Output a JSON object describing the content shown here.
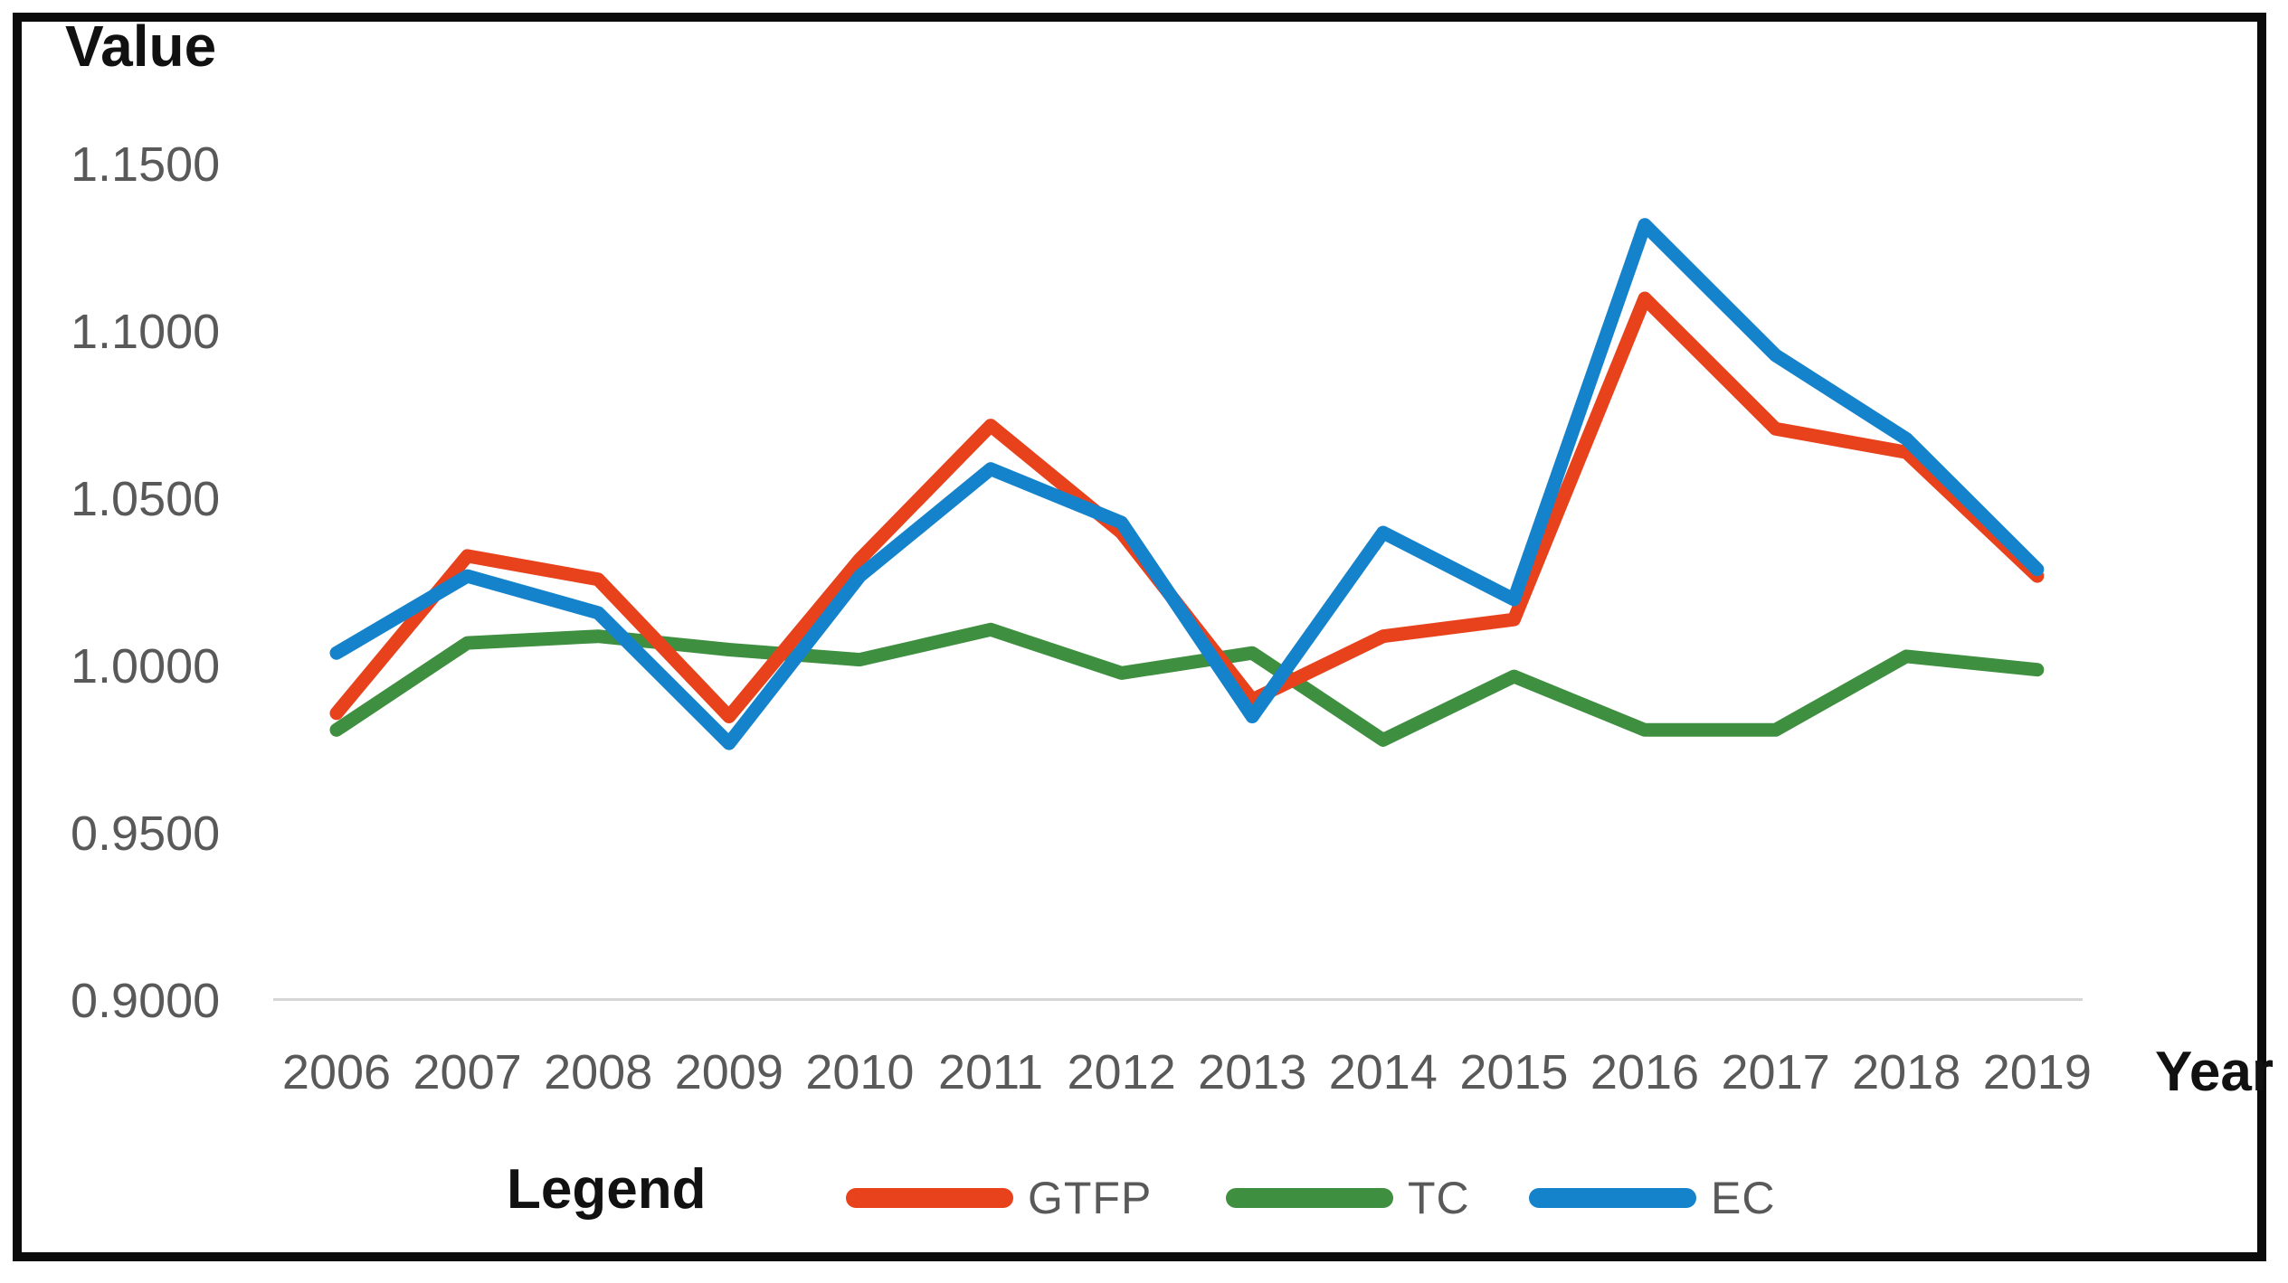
{
  "chart": {
    "y_axis_title": "Value",
    "x_axis_title": "Year",
    "legend_title": "Legend"
  },
  "chart_data": {
    "type": "line",
    "title": "",
    "ylabel": "Value",
    "xlabel": "Year",
    "ylim": [
      0.9,
      1.15
    ],
    "ytick_step": 0.05,
    "ytick_labels": [
      "1.1500",
      "1.1000",
      "1.0500",
      "1.0000",
      "0.9500",
      "0.9000"
    ],
    "grid": "single light baseline gridline at 0.9000",
    "legend_position": "bottom",
    "x": [
      "2006",
      "2007",
      "2008",
      "2009",
      "2010",
      "2011",
      "2012",
      "2013",
      "2014",
      "2015",
      "2016",
      "2017",
      "2018",
      "2019"
    ],
    "series": [
      {
        "name": "GTFP",
        "color": "#e8421c",
        "values": [
          0.986,
          1.033,
          1.026,
          0.985,
          1.032,
          1.072,
          1.04,
          0.99,
          1.009,
          1.014,
          1.11,
          1.071,
          1.064,
          1.027
        ]
      },
      {
        "name": "TC",
        "color": "#3f8f41",
        "values": [
          0.981,
          1.007,
          1.009,
          1.005,
          1.002,
          1.011,
          0.998,
          1.004,
          0.978,
          0.997,
          0.981,
          0.981,
          1.003,
          0.999
        ]
      },
      {
        "name": "EC",
        "color": "#1583cb",
        "values": [
          1.004,
          1.027,
          1.016,
          0.977,
          1.027,
          1.059,
          1.043,
          0.985,
          1.04,
          1.02,
          1.132,
          1.093,
          1.068,
          1.029
        ]
      }
    ]
  }
}
